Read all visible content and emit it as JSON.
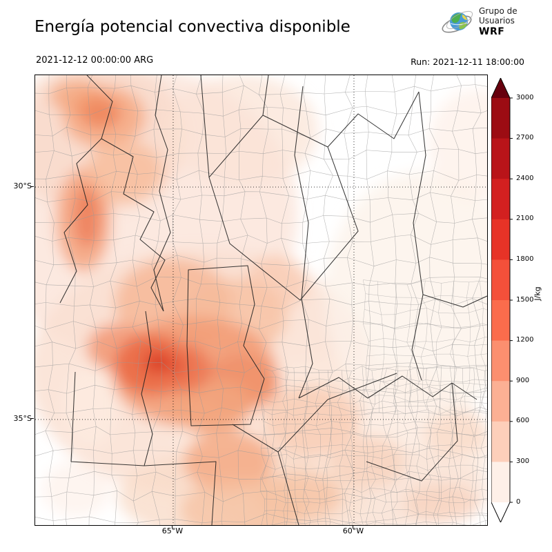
{
  "header": {
    "title": "Energía potencial convectiva disponible",
    "valid_time": "2021-12-12 00:00:00 ARG",
    "run_time": "Run: 2021-12-11 18:00:00",
    "logo": {
      "line1": "Grupo de",
      "line2": "Usuarios",
      "line3": "WRF"
    }
  },
  "axes": {
    "y_ticks": [
      {
        "label": "30°S",
        "frac": 0.2485
      },
      {
        "label": "35°S",
        "frac": 0.7653
      }
    ],
    "x_ticks": [
      {
        "label": "65°W",
        "frac": 0.3053
      },
      {
        "label": "60°W",
        "frac": 0.7053
      }
    ]
  },
  "colorbar": {
    "label": "J/kg",
    "ticks": [
      "3000",
      "2700",
      "2400",
      "2100",
      "1800",
      "1500",
      "1200",
      "900",
      "600",
      "300",
      "0"
    ],
    "segments_top_to_bottom": [
      "#9c0c13",
      "#b91419",
      "#d32020",
      "#e73327",
      "#f4503a",
      "#fb6c4c",
      "#fc8f6f",
      "#fcb094",
      "#fdcfba",
      "#fef0e8"
    ],
    "over_color": "#67000d",
    "under_color": "#ffffff"
  },
  "chart_data": {
    "type": "heatmap",
    "title": "Energía potencial convectiva disponible",
    "units": "J/kg",
    "valid_time": "2021-12-12 00:00:00 ARG",
    "run_time": "2021-12-11 18:00:00",
    "colorbar_ticks": [
      0,
      300,
      600,
      900,
      1200,
      1500,
      1800,
      2100,
      2400,
      2700,
      3000
    ],
    "colorbar_range": [
      0,
      3000
    ],
    "x_axis": {
      "ticks": [
        "65°W",
        "60°W"
      ]
    },
    "y_axis": {
      "ticks": [
        "30°S",
        "35°S"
      ]
    },
    "approx_extent": {
      "lon_west": -68.8,
      "lon_east": -56.3,
      "lat_south": -37.3,
      "lat_north": -27.6
    },
    "hotspots_estimated": [
      {
        "lat": -34.2,
        "lon": -66.3,
        "cape_jkg": 1500
      },
      {
        "lat": -34.3,
        "lon": -65.6,
        "cape_jkg": 1200
      },
      {
        "lat": -34.5,
        "lon": -64.3,
        "cape_jkg": 1000
      },
      {
        "lat": -31.9,
        "lon": -67.0,
        "cape_jkg": 900
      },
      {
        "lat": -28.6,
        "lon": -67.5,
        "cape_jkg": 900
      },
      {
        "lat": -36.3,
        "lon": -64.9,
        "cape_jkg": 800
      },
      {
        "lat": -35.8,
        "lon": -60.5,
        "cape_jkg": 400
      },
      {
        "lat": -30.0,
        "lon": -58.5,
        "cape_jkg": 150
      }
    ],
    "legend_position": "right"
  }
}
